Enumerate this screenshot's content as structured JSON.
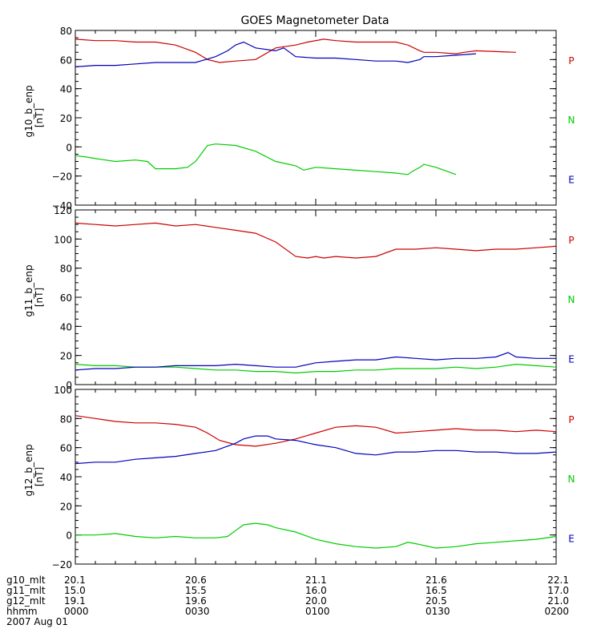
{
  "title": "GOES Magnetometer Data",
  "colors": {
    "P": "#cc0000",
    "N": "#00cc00",
    "E": "#0000bb",
    "axis": "#000000"
  },
  "chart_data": [
    {
      "type": "line",
      "ylabel": "g10_b_enp",
      "yunit": "[nT]",
      "ylim": [
        -40,
        80
      ],
      "yticks": [
        80,
        60,
        40,
        20,
        0,
        -20,
        -40
      ],
      "ytick_labels": [
        "80",
        "60",
        "40",
        "20",
        "0",
        "−20",
        "−40"
      ],
      "xlim": [
        0,
        120
      ],
      "legend": [
        "P",
        "N",
        "E"
      ],
      "series": [
        {
          "name": "P",
          "color": "#cc0000",
          "x": [
            0,
            5,
            10,
            15,
            20,
            25,
            30,
            33,
            36,
            40,
            45,
            50,
            55,
            58,
            62,
            65,
            70,
            75,
            80,
            83,
            86,
            87,
            90,
            95,
            97,
            100,
            110
          ],
          "y": [
            74,
            73,
            73,
            72,
            72,
            70,
            65,
            60,
            58,
            59,
            60,
            68,
            70,
            72,
            74,
            73,
            72,
            72,
            72,
            70,
            66,
            65,
            65,
            64,
            65,
            66,
            65
          ]
        },
        {
          "name": "N",
          "color": "#00cc00",
          "x": [
            0,
            3,
            5,
            10,
            15,
            18,
            20,
            25,
            28,
            30,
            33,
            35,
            40,
            45,
            50,
            55,
            57,
            60,
            65,
            70,
            75,
            80,
            83,
            84,
            86,
            87,
            90,
            95
          ],
          "y": [
            -6,
            -7,
            -8,
            -10,
            -9,
            -10,
            -15,
            -15,
            -14,
            -10,
            1,
            2,
            1,
            -3,
            -10,
            -13,
            -16,
            -14,
            -15,
            -16,
            -17,
            -18,
            -19,
            -17,
            -14,
            -12,
            -14,
            -19
          ]
        },
        {
          "name": "E",
          "color": "#0000bb",
          "x": [
            0,
            5,
            10,
            15,
            20,
            25,
            30,
            35,
            38,
            40,
            42,
            45,
            50,
            52,
            55,
            60,
            65,
            70,
            75,
            80,
            83,
            86,
            87,
            90,
            95,
            100
          ],
          "y": [
            55,
            56,
            56,
            57,
            58,
            58,
            58,
            62,
            66,
            70,
            72,
            68,
            66,
            68,
            62,
            61,
            61,
            60,
            59,
            59,
            58,
            60,
            62,
            62,
            63,
            64
          ]
        }
      ]
    },
    {
      "type": "line",
      "ylabel": "g11_b_enp",
      "yunit": "[nT]",
      "ylim": [
        0,
        120
      ],
      "yticks": [
        120,
        100,
        80,
        60,
        40,
        20,
        0
      ],
      "ytick_labels": [
        "120",
        "100",
        "80",
        "60",
        "40",
        "20",
        "0"
      ],
      "xlim": [
        0,
        120
      ],
      "legend": [
        "P",
        "N",
        "E"
      ],
      "series": [
        {
          "name": "P",
          "color": "#cc0000",
          "x": [
            0,
            5,
            10,
            15,
            20,
            25,
            30,
            35,
            40,
            45,
            50,
            55,
            58,
            60,
            62,
            65,
            70,
            75,
            80,
            85,
            90,
            95,
            100,
            105,
            110,
            115,
            120
          ],
          "y": [
            111,
            110,
            109,
            110,
            111,
            109,
            110,
            108,
            106,
            104,
            98,
            88,
            87,
            88,
            87,
            88,
            87,
            88,
            93,
            93,
            94,
            93,
            92,
            93,
            93,
            94,
            95
          ]
        },
        {
          "name": "N",
          "color": "#00cc00",
          "x": [
            0,
            5,
            10,
            15,
            20,
            25,
            30,
            35,
            40,
            45,
            50,
            55,
            60,
            65,
            70,
            75,
            80,
            85,
            90,
            95,
            100,
            105,
            110,
            115,
            120
          ],
          "y": [
            14,
            13,
            13,
            12,
            12,
            12,
            11,
            10,
            10,
            9,
            9,
            8,
            9,
            9,
            10,
            10,
            11,
            11,
            11,
            12,
            11,
            12,
            14,
            13,
            12
          ]
        },
        {
          "name": "E",
          "color": "#0000bb",
          "x": [
            0,
            5,
            10,
            15,
            20,
            25,
            30,
            35,
            40,
            45,
            50,
            55,
            60,
            65,
            70,
            75,
            80,
            85,
            90,
            95,
            100,
            105,
            108,
            110,
            115,
            120
          ],
          "y": [
            10,
            11,
            11,
            12,
            12,
            13,
            13,
            13,
            14,
            13,
            12,
            12,
            15,
            16,
            17,
            17,
            19,
            18,
            17,
            18,
            18,
            19,
            22,
            19,
            18,
            18
          ]
        }
      ]
    },
    {
      "type": "line",
      "ylabel": "g12_b_enp",
      "yunit": "[nT]",
      "ylim": [
        -20,
        100
      ],
      "yticks": [
        100,
        80,
        60,
        40,
        20,
        0,
        -20
      ],
      "ytick_labels": [
        "100",
        "80",
        "60",
        "40",
        "20",
        "0",
        "−20"
      ],
      "xlim": [
        0,
        120
      ],
      "legend": [
        "P",
        "N",
        "E"
      ],
      "series": [
        {
          "name": "P",
          "color": "#cc0000",
          "x": [
            0,
            5,
            10,
            15,
            20,
            25,
            30,
            33,
            36,
            40,
            45,
            50,
            55,
            60,
            65,
            70,
            75,
            80,
            85,
            90,
            95,
            100,
            105,
            110,
            115,
            120
          ],
          "y": [
            82,
            80,
            78,
            77,
            77,
            76,
            74,
            70,
            65,
            62,
            61,
            63,
            66,
            70,
            74,
            75,
            74,
            70,
            71,
            72,
            73,
            72,
            72,
            71,
            72,
            71
          ]
        },
        {
          "name": "N",
          "color": "#00cc00",
          "x": [
            0,
            5,
            10,
            15,
            20,
            25,
            30,
            35,
            38,
            40,
            42,
            45,
            48,
            50,
            55,
            60,
            65,
            70,
            75,
            80,
            83,
            85,
            90,
            95,
            100,
            105,
            110,
            115,
            120
          ],
          "y": [
            0,
            0,
            1,
            -1,
            -2,
            -1,
            -2,
            -2,
            -1,
            3,
            7,
            8,
            7,
            5,
            2,
            -3,
            -6,
            -8,
            -9,
            -8,
            -5,
            -6,
            -9,
            -8,
            -6,
            -5,
            -4,
            -3,
            -1
          ]
        },
        {
          "name": "E",
          "color": "#0000bb",
          "x": [
            0,
            5,
            10,
            15,
            20,
            25,
            30,
            35,
            40,
            42,
            45,
            48,
            50,
            55,
            60,
            65,
            70,
            75,
            80,
            85,
            90,
            95,
            100,
            105,
            110,
            115,
            120
          ],
          "y": [
            49,
            50,
            50,
            52,
            53,
            54,
            56,
            58,
            63,
            66,
            68,
            68,
            66,
            65,
            62,
            60,
            56,
            55,
            57,
            57,
            58,
            58,
            57,
            57,
            56,
            56,
            57
          ]
        }
      ]
    }
  ],
  "x_axis": {
    "tick_positions": [
      0,
      30,
      60,
      90,
      120
    ],
    "rows": [
      {
        "label": "g10_mlt",
        "values": [
          "20.1",
          "20.6",
          "21.1",
          "21.6",
          "22.1"
        ]
      },
      {
        "label": "g11_mlt",
        "values": [
          "15.0",
          "15.5",
          "16.0",
          "16.5",
          "17.0"
        ]
      },
      {
        "label": "g12_mlt",
        "values": [
          "19.1",
          "19.6",
          "20.0",
          "20.5",
          "21.0"
        ]
      },
      {
        "label": "hhmm",
        "values": [
          "0000",
          "0030",
          "0100",
          "0130",
          "0200"
        ]
      }
    ],
    "date": "2007 Aug 01"
  }
}
